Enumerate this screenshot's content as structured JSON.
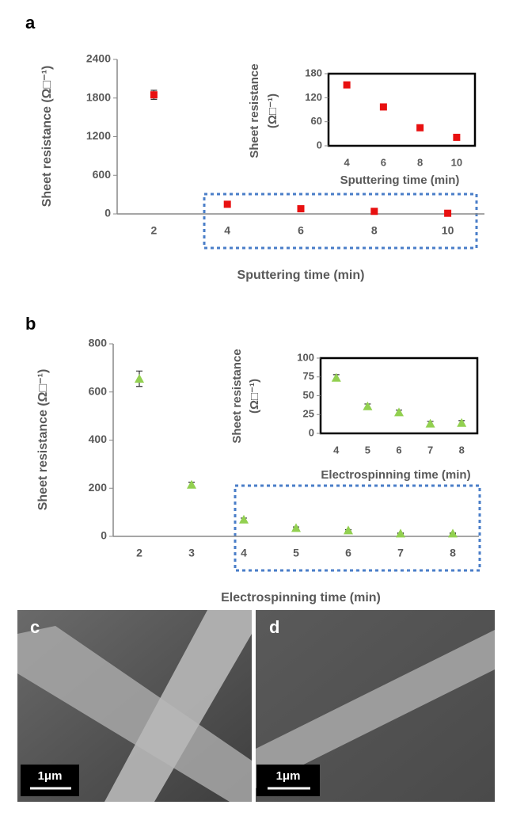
{
  "panel_labels": [
    "a",
    "b",
    "c",
    "d"
  ],
  "scale_bars": [
    "1μm",
    "1μm"
  ],
  "chart_data": [
    {
      "type": "scatter",
      "marker": "square",
      "color": "#e81010",
      "ylabel": [
        "Sheet resistance (Ω□⁻¹)"
      ],
      "xlabel": "Sputtering time (min)",
      "categories": [
        "2",
        "4",
        "6",
        "8",
        "10"
      ],
      "values": [
        1850,
        150,
        80,
        40,
        10
      ],
      "errors": [
        70,
        15,
        10,
        8,
        5
      ],
      "ylim": [
        0,
        2400
      ],
      "yticks": [
        0,
        600,
        1200,
        1800,
        2400
      ],
      "frame": false
    },
    {
      "type": "scatter",
      "marker": "square",
      "color": "#e81010",
      "ylabel": [
        "Sheet resistance",
        "(Ω□⁻¹)"
      ],
      "xlabel": "Sputtering time (min)",
      "categories": [
        "4",
        "6",
        "8",
        "10"
      ],
      "values": [
        152,
        97,
        45,
        21
      ],
      "errors": [
        6,
        5,
        4,
        3
      ],
      "ylim": [
        0,
        180
      ],
      "yticks": [
        0,
        60,
        120,
        180
      ],
      "frame": true
    },
    {
      "type": "scatter",
      "marker": "triangle",
      "color": "#92d050",
      "ylabel": [
        "Sheet resistance (Ω□⁻¹)"
      ],
      "xlabel": "Electrospinning time (min)",
      "categories": [
        "2",
        "3",
        "4",
        "5",
        "6",
        "7",
        "8"
      ],
      "values": [
        655,
        215,
        70,
        35,
        25,
        12,
        12
      ],
      "errors": [
        32,
        10,
        6,
        4,
        3,
        2,
        2
      ],
      "ylim": [
        0,
        800
      ],
      "yticks": [
        0,
        200,
        400,
        600,
        800
      ],
      "frame": false
    },
    {
      "type": "scatter",
      "marker": "triangle",
      "color": "#92d050",
      "ylabel": [
        "Sheet resistance",
        "(Ω□⁻¹)"
      ],
      "xlabel": "Electrospinning time (min)",
      "categories": [
        "4",
        "5",
        "6",
        "7",
        "8"
      ],
      "values": [
        74,
        36,
        28,
        13,
        14
      ],
      "errors": [
        4,
        3,
        3,
        3,
        3
      ],
      "ylim": [
        0,
        100
      ],
      "yticks": [
        0,
        25,
        50,
        75,
        100
      ],
      "frame": true
    }
  ]
}
